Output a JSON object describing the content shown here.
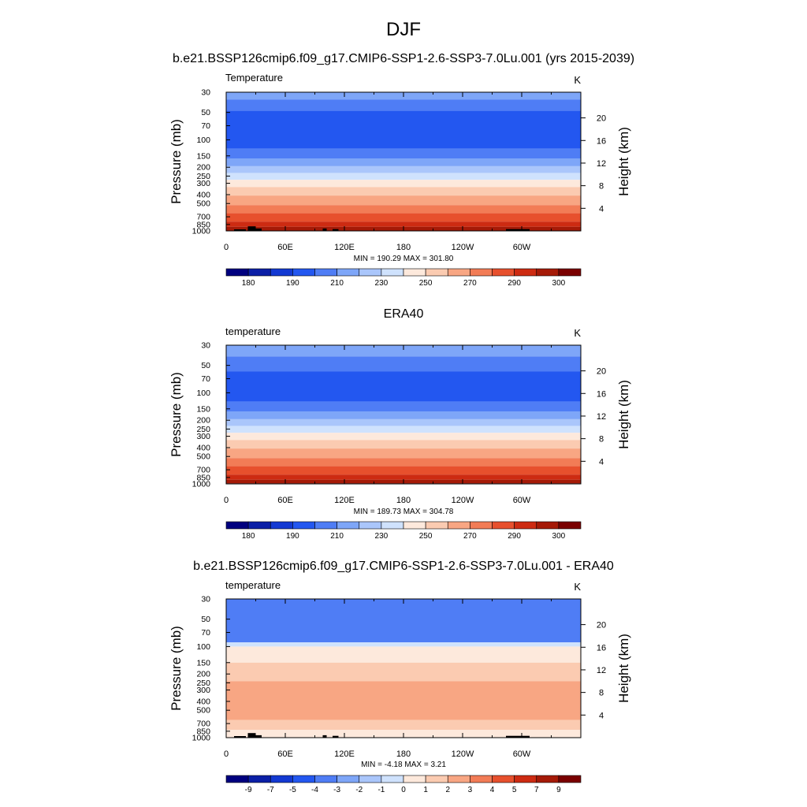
{
  "title": "DJF",
  "subtitle": "b.e21.BSSP126cmip6.f09_g17.CMIP6-SSP1-2.6-SSP3-7.0Lu.001 (yrs 2015-2039)",
  "colors": {
    "abs_palette": [
      "#00007f",
      "#0b1fa6",
      "#1339d2",
      "#2357f0",
      "#4f7df5",
      "#7ea6f8",
      "#aac6fb",
      "#cfe2fd",
      "#fde9dc",
      "#fbcbb1",
      "#f8a683",
      "#f27c56",
      "#e7502d",
      "#cd2b12",
      "#a51a07",
      "#7a0000"
    ],
    "diff_palette": [
      "#00007f",
      "#0b1fa6",
      "#1339d2",
      "#2357f0",
      "#4f7df5",
      "#7ea6f8",
      "#aac6fb",
      "#cfe2fd",
      "#fde9dc",
      "#fbcbb1",
      "#f8a683",
      "#f27c56",
      "#e7502d",
      "#cd2b12",
      "#a51a07",
      "#7a0000"
    ],
    "topography": "#000000"
  },
  "chart_data": [
    {
      "type": "heatmap",
      "panel_title": "",
      "left_label": "Temperature",
      "right_label": "K",
      "ylabel": "Pressure (mb)",
      "ylabel_right": "Height (km)",
      "x_ticks": [
        "0",
        "60E",
        "120E",
        "180",
        "120W",
        "60W"
      ],
      "x_tick_values": [
        0,
        60,
        120,
        180,
        240,
        300
      ],
      "xlim": [
        0,
        360
      ],
      "y_ticks": [
        "30",
        "50",
        "70",
        "100",
        "150",
        "200",
        "250",
        "300",
        "400",
        "500",
        "700",
        "850",
        "1000"
      ],
      "y_tick_values": [
        30,
        50,
        70,
        100,
        150,
        200,
        250,
        300,
        400,
        500,
        700,
        850,
        1000
      ],
      "ylim_mb": [
        30,
        1000
      ],
      "height_ticks": [
        "20",
        "16",
        "12",
        "8",
        "4"
      ],
      "height_tick_values": [
        20,
        16,
        12,
        8,
        4
      ],
      "stats": "MIN = 190.29  MAX = 301.80",
      "min": 190.29,
      "max": 301.8,
      "colorbar_labels": [
        "180",
        "190",
        "210",
        "230",
        "250",
        "270",
        "290",
        "300"
      ],
      "colorbar_label_bins": [
        1,
        3,
        5,
        7,
        9,
        11,
        13,
        15
      ],
      "level_bounds": [
        {
          "p": 30,
          "bin": 5
        },
        {
          "p": 36,
          "bin": 4
        },
        {
          "p": 48,
          "bin": 3
        },
        {
          "p": 125,
          "bin": 4
        },
        {
          "p": 160,
          "bin": 5
        },
        {
          "p": 195,
          "bin": 6
        },
        {
          "p": 232,
          "bin": 7
        },
        {
          "p": 275,
          "bin": 8
        },
        {
          "p": 330,
          "bin": 9
        },
        {
          "p": 410,
          "bin": 10
        },
        {
          "p": 520,
          "bin": 11
        },
        {
          "p": 640,
          "bin": 12
        },
        {
          "p": 790,
          "bin": 13
        },
        {
          "p": 900,
          "bin": 14
        }
      ],
      "topography": [
        [
          8,
          20,
          960
        ],
        [
          22,
          30,
          890
        ],
        [
          30,
          36,
          940
        ],
        [
          98,
          102,
          940
        ],
        [
          108,
          114,
          955
        ],
        [
          284,
          308,
          955
        ]
      ]
    },
    {
      "type": "heatmap",
      "panel_title": "ERA40",
      "left_label": "temperature",
      "right_label": "K",
      "ylabel": "Pressure (mb)",
      "ylabel_right": "Height (km)",
      "x_ticks": [
        "0",
        "60E",
        "120E",
        "180",
        "120W",
        "60W"
      ],
      "x_tick_values": [
        0,
        60,
        120,
        180,
        240,
        300
      ],
      "xlim": [
        0,
        360
      ],
      "y_ticks": [
        "30",
        "50",
        "70",
        "100",
        "150",
        "200",
        "250",
        "300",
        "400",
        "500",
        "700",
        "850",
        "1000"
      ],
      "y_tick_values": [
        30,
        50,
        70,
        100,
        150,
        200,
        250,
        300,
        400,
        500,
        700,
        850,
        1000
      ],
      "ylim_mb": [
        30,
        1000
      ],
      "height_ticks": [
        "20",
        "16",
        "12",
        "8",
        "4"
      ],
      "height_tick_values": [
        20,
        16,
        12,
        8,
        4
      ],
      "stats": "MIN = 189.73  MAX = 304.78",
      "min": 189.73,
      "max": 304.78,
      "colorbar_labels": [
        "180",
        "190",
        "210",
        "230",
        "250",
        "270",
        "290",
        "300"
      ],
      "colorbar_label_bins": [
        1,
        3,
        5,
        7,
        9,
        11,
        13,
        15
      ],
      "level_bounds": [
        {
          "p": 30,
          "bin": 5
        },
        {
          "p": 40,
          "bin": 4
        },
        {
          "p": 58,
          "bin": 3
        },
        {
          "p": 125,
          "bin": 4
        },
        {
          "p": 160,
          "bin": 5
        },
        {
          "p": 195,
          "bin": 6
        },
        {
          "p": 232,
          "bin": 7
        },
        {
          "p": 275,
          "bin": 8
        },
        {
          "p": 330,
          "bin": 9
        },
        {
          "p": 410,
          "bin": 10
        },
        {
          "p": 520,
          "bin": 11
        },
        {
          "p": 640,
          "bin": 12
        },
        {
          "p": 790,
          "bin": 13
        },
        {
          "p": 900,
          "bin": 14
        },
        {
          "p": 985,
          "bin": 15
        }
      ],
      "topography": []
    },
    {
      "type": "heatmap",
      "panel_title": "b.e21.BSSP126cmip6.f09_g17.CMIP6-SSP1-2.6-SSP3-7.0Lu.001 - ERA40",
      "left_label": "temperature",
      "right_label": "K",
      "ylabel": "Pressure (mb)",
      "ylabel_right": "Height (km)",
      "x_ticks": [
        "0",
        "60E",
        "120E",
        "180",
        "120W",
        "60W"
      ],
      "x_tick_values": [
        0,
        60,
        120,
        180,
        240,
        300
      ],
      "xlim": [
        0,
        360
      ],
      "y_ticks": [
        "30",
        "50",
        "70",
        "100",
        "150",
        "200",
        "250",
        "300",
        "400",
        "500",
        "700",
        "850",
        "1000"
      ],
      "y_tick_values": [
        30,
        50,
        70,
        100,
        150,
        200,
        250,
        300,
        400,
        500,
        700,
        850,
        1000
      ],
      "ylim_mb": [
        30,
        1000
      ],
      "height_ticks": [
        "20",
        "16",
        "12",
        "8",
        "4"
      ],
      "height_tick_values": [
        20,
        16,
        12,
        8,
        4
      ],
      "stats": "MIN =  -4.18  MAX =   3.21",
      "min": -4.18,
      "max": 3.21,
      "colorbar_labels": [
        "-9",
        "-7",
        "-5",
        "-4",
        "-3",
        "-2",
        "-1",
        "0",
        "1",
        "2",
        "3",
        "4",
        "5",
        "7",
        "9"
      ],
      "colorbar_label_bins": [
        1,
        2,
        3,
        4,
        5,
        6,
        7,
        8,
        9,
        10,
        11,
        12,
        13,
        14,
        15
      ],
      "level_bounds": [
        {
          "p": 30,
          "bin": 4
        },
        {
          "p": 90,
          "bin": 7
        },
        {
          "p": 100,
          "bin": 8
        },
        {
          "p": 150,
          "bin": 9
        },
        {
          "p": 240,
          "bin": 10
        },
        {
          "p": 640,
          "bin": 9
        },
        {
          "p": 820,
          "bin": 8
        }
      ],
      "topography": [
        [
          8,
          20,
          960
        ],
        [
          22,
          30,
          890
        ],
        [
          30,
          36,
          940
        ],
        [
          98,
          102,
          940
        ],
        [
          108,
          114,
          955
        ],
        [
          284,
          308,
          955
        ]
      ]
    }
  ]
}
